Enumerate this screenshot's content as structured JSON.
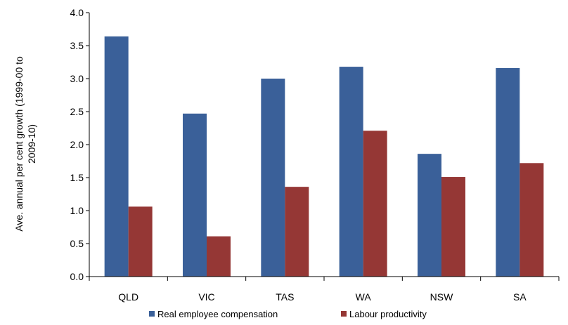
{
  "chart_data": {
    "type": "bar",
    "categories": [
      "QLD",
      "VIC",
      "TAS",
      "WA",
      "NSW",
      "SA"
    ],
    "series": [
      {
        "name": "Real employee compensation",
        "values": [
          3.64,
          2.47,
          3.0,
          3.18,
          1.86,
          3.16
        ],
        "color": "#3A6099"
      },
      {
        "name": "Labour productivity",
        "values": [
          1.06,
          0.61,
          1.36,
          2.21,
          1.51,
          1.72
        ],
        "color": "#953735"
      }
    ],
    "ylabel_lines": [
      "Ave. annual per cent growth (1999-00 to",
      "2009-10)"
    ],
    "xlabel": "",
    "ylim": [
      0,
      4.0
    ],
    "yticks": [
      "0.0",
      "0.5",
      "1.0",
      "1.5",
      "2.0",
      "2.5",
      "3.0",
      "3.5",
      "4.0"
    ],
    "grid": false,
    "legend_position": "bottom"
  }
}
